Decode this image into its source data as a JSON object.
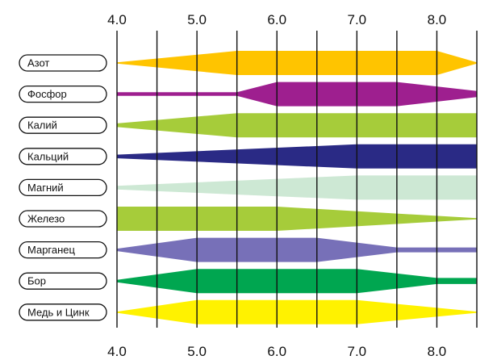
{
  "chart_data": {
    "type": "availability-band",
    "title": "",
    "xlabel": "",
    "ylabel": "",
    "xlim": [
      4.0,
      8.5
    ],
    "ticks": [
      4.0,
      4.5,
      5.0,
      5.5,
      6.0,
      6.5,
      7.0,
      7.5,
      8.0,
      8.5
    ],
    "tick_labels": [
      {
        "value": 4.0,
        "label": "4.0"
      },
      {
        "value": 5.0,
        "label": "5.0"
      },
      {
        "value": 6.0,
        "label": "6.0"
      },
      {
        "value": 7.0,
        "label": "7.0"
      },
      {
        "value": 8.0,
        "label": "8.0"
      }
    ],
    "series": [
      {
        "name": "Азот",
        "color": "#ffc400",
        "profile": [
          [
            4.0,
            0.05
          ],
          [
            5.5,
            1.0
          ],
          [
            8.0,
            1.0
          ],
          [
            8.5,
            0.05
          ]
        ]
      },
      {
        "name": "Фосфор",
        "color": "#9e1f8f",
        "profile": [
          [
            4.0,
            0.15
          ],
          [
            5.5,
            0.15
          ],
          [
            6.0,
            1.0
          ],
          [
            7.5,
            1.0
          ],
          [
            8.5,
            0.25
          ]
        ]
      },
      {
        "name": "Калий",
        "color": "#a6cc3a",
        "profile": [
          [
            4.0,
            0.15
          ],
          [
            5.5,
            1.0
          ],
          [
            8.5,
            1.0
          ]
        ]
      },
      {
        "name": "Кальций",
        "color": "#2a2a85",
        "profile": [
          [
            4.0,
            0.15
          ],
          [
            7.0,
            1.0
          ],
          [
            8.5,
            1.0
          ]
        ]
      },
      {
        "name": "Магний",
        "color": "#cde8d4",
        "profile": [
          [
            4.0,
            0.15
          ],
          [
            7.0,
            1.0
          ],
          [
            8.5,
            1.0
          ]
        ]
      },
      {
        "name": "Железо",
        "color": "#a6cc3a",
        "profile": [
          [
            4.0,
            1.0
          ],
          [
            6.0,
            1.0
          ],
          [
            8.5,
            0.05
          ]
        ]
      },
      {
        "name": "Марганец",
        "color": "#7770b8",
        "profile": [
          [
            4.0,
            0.1
          ],
          [
            5.0,
            1.0
          ],
          [
            6.5,
            1.0
          ],
          [
            7.5,
            0.2
          ],
          [
            8.5,
            0.2
          ]
        ]
      },
      {
        "name": "Бор",
        "color": "#00a650",
        "profile": [
          [
            4.0,
            0.1
          ],
          [
            5.0,
            1.0
          ],
          [
            7.0,
            1.0
          ],
          [
            8.0,
            0.25
          ],
          [
            8.5,
            0.25
          ]
        ]
      },
      {
        "name": "Медь и Цинк",
        "color": "#fff200",
        "profile": [
          [
            4.0,
            0.05
          ],
          [
            5.0,
            1.0
          ],
          [
            7.0,
            1.0
          ],
          [
            8.5,
            0.05
          ]
        ]
      }
    ]
  }
}
